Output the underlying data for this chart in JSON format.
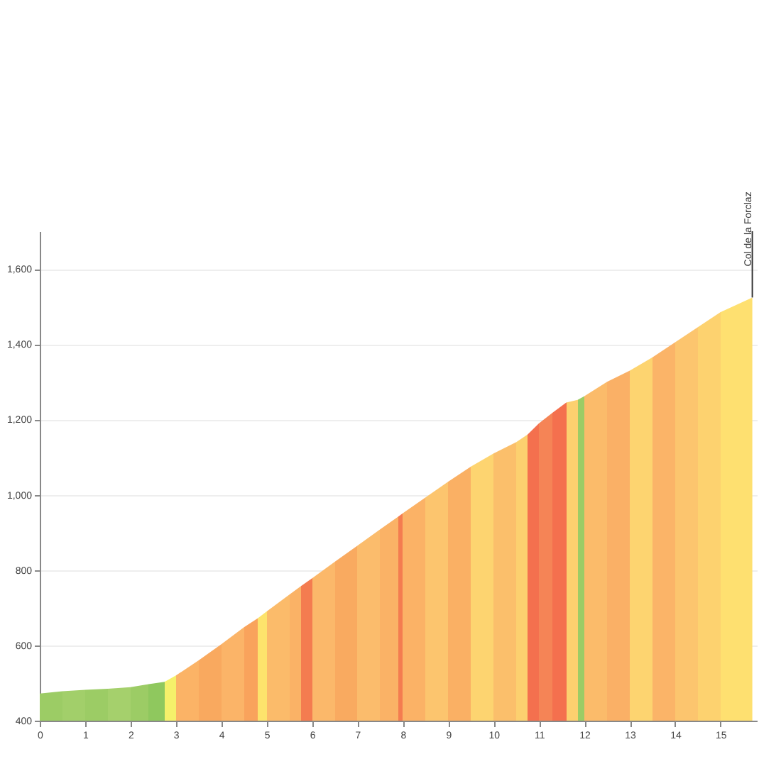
{
  "chart_data": {
    "type": "area",
    "x": [
      0,
      0.5,
      1.0,
      1.5,
      2.0,
      2.4,
      2.75,
      3.0,
      3.5,
      4.0,
      4.5,
      4.8,
      5.0,
      5.5,
      5.75,
      6.0,
      6.5,
      7.0,
      7.5,
      7.9,
      8.0,
      8.5,
      9.0,
      9.5,
      10.0,
      10.5,
      10.75,
      11.0,
      11.3,
      11.6,
      11.85,
      12.0,
      12.5,
      13.0,
      13.5,
      14.0,
      14.5,
      15.0,
      15.7
    ],
    "values": [
      472,
      478,
      482,
      485,
      489,
      497,
      503,
      520,
      560,
      603,
      648,
      672,
      690,
      735,
      757,
      778,
      822,
      865,
      908,
      942,
      951,
      993,
      1035,
      1075,
      1110,
      1140,
      1160,
      1190,
      1218,
      1245,
      1252,
      1262,
      1300,
      1330,
      1365,
      1405,
      1445,
      1485,
      1524
    ],
    "colors": [
      "#9ccc65",
      "#a2cf6a",
      "#9ccc65",
      "#a5d06c",
      "#9ccc65",
      "#8fc85e",
      "#f5f06a",
      "#fbb366",
      "#f9a95f",
      "#fbb468",
      "#f9a35c",
      "#fde36c",
      "#fbbb6a",
      "#fab266",
      "#f47c50",
      "#fbb86a",
      "#f9aa60",
      "#fbbc6c",
      "#fab266",
      "#f47c50",
      "#fbb266",
      "#fcc56e",
      "#fab064",
      "#fdd470",
      "#fbbf6b",
      "#fcd06f",
      "#f4704e",
      "#f58456",
      "#f4704e",
      "#fcd06f",
      "#9ccc65",
      "#fbbb6a",
      "#fab066",
      "#fdd470",
      "#fbb468",
      "#fcc56e",
      "#fdd26f",
      "#fee070",
      "#fee070"
    ],
    "xlim": [
      0,
      15.8
    ],
    "ylim": [
      400,
      1700
    ],
    "xticks": [
      0,
      1,
      2,
      3,
      4,
      5,
      6,
      7,
      8,
      9,
      10,
      11,
      12,
      13,
      14,
      15
    ],
    "yticks": [
      400,
      600,
      800,
      {
        "value": 1000,
        "label": "1,000"
      },
      {
        "value": 1200,
        "label": "1,200"
      },
      {
        "value": 1400,
        "label": "1,400"
      },
      {
        "value": 1600,
        "label": "1,600"
      }
    ],
    "grid": "y",
    "annotations": [
      {
        "text": "Col de la Forclaz",
        "x": 15.7,
        "y": 1524
      }
    ]
  }
}
